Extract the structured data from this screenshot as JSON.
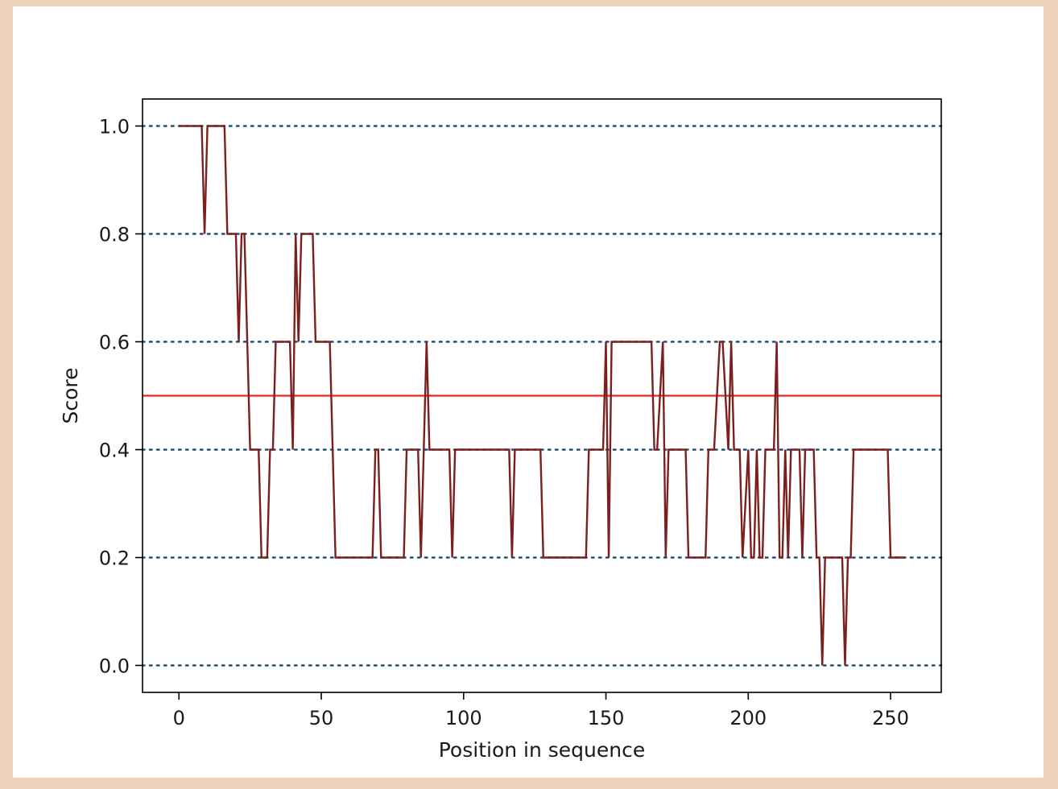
{
  "chart_data": {
    "type": "line",
    "title": "",
    "xlabel": "Position in sequence",
    "ylabel": "Score",
    "xlim": [
      -12.8,
      267.8
    ],
    "ylim": [
      -0.05,
      1.05
    ],
    "xticks": [
      0,
      50,
      100,
      150,
      200,
      250
    ],
    "yticks": [
      0.0,
      0.2,
      0.4,
      0.6,
      0.8,
      1.0
    ],
    "xtick_labels": [
      "0",
      "50",
      "100",
      "150",
      "200",
      "250"
    ],
    "ytick_labels": [
      "0.0",
      "0.2",
      "0.4",
      "0.6",
      "0.8",
      "1.0"
    ],
    "grid": "horizontal dotted at y ticks",
    "threshold": 0.5,
    "colors": {
      "series": "#7b1f1f",
      "threshold": "#e8261a",
      "grid": "#1f4e6e"
    },
    "series": [
      {
        "x": [
          0,
          8,
          9,
          10,
          11,
          16,
          17,
          19,
          20,
          21,
          22,
          23,
          24,
          25,
          26,
          28,
          29,
          30,
          31,
          32,
          33,
          34,
          35,
          39,
          40,
          41,
          42,
          43,
          44,
          47,
          48,
          49,
          50,
          53,
          54,
          55,
          56,
          68,
          69,
          70,
          71,
          72,
          73,
          79,
          80,
          81,
          82,
          84,
          85,
          86,
          87,
          88,
          89,
          95,
          96,
          97,
          98,
          116,
          117,
          118,
          119,
          127,
          128,
          143,
          144,
          149,
          150,
          151,
          152,
          153,
          166,
          167,
          168,
          170,
          171,
          172,
          173,
          178,
          179,
          185,
          186,
          187,
          188,
          190,
          191,
          193,
          194,
          195,
          196,
          197,
          198,
          200,
          201,
          202,
          203,
          204,
          205,
          206,
          207,
          209,
          210,
          211,
          212,
          213,
          214,
          215,
          216,
          218,
          219,
          220,
          221,
          223,
          224,
          225,
          226,
          227,
          228,
          233,
          234,
          235,
          236,
          237,
          238,
          249,
          250,
          255
        ],
        "y": [
          1.0,
          1.0,
          0.8,
          1.0,
          1.0,
          1.0,
          0.8,
          0.8,
          0.8,
          0.6,
          0.8,
          0.8,
          0.6,
          0.4,
          0.4,
          0.4,
          0.2,
          0.2,
          0.2,
          0.4,
          0.4,
          0.6,
          0.6,
          0.6,
          0.4,
          0.8,
          0.6,
          0.8,
          0.8,
          0.8,
          0.6,
          0.6,
          0.6,
          0.6,
          0.4,
          0.2,
          0.2,
          0.2,
          0.4,
          0.4,
          0.2,
          0.2,
          0.2,
          0.2,
          0.4,
          0.4,
          0.4,
          0.4,
          0.2,
          0.4,
          0.6,
          0.4,
          0.4,
          0.4,
          0.2,
          0.4,
          0.4,
          0.4,
          0.2,
          0.4,
          0.4,
          0.4,
          0.2,
          0.2,
          0.4,
          0.4,
          0.6,
          0.2,
          0.6,
          0.6,
          0.6,
          0.4,
          0.4,
          0.6,
          0.2,
          0.4,
          0.4,
          0.4,
          0.2,
          0.2,
          0.4,
          0.4,
          0.4,
          0.6,
          0.6,
          0.4,
          0.6,
          0.4,
          0.4,
          0.4,
          0.2,
          0.4,
          0.2,
          0.2,
          0.4,
          0.2,
          0.2,
          0.4,
          0.4,
          0.4,
          0.6,
          0.2,
          0.2,
          0.4,
          0.2,
          0.4,
          0.4,
          0.4,
          0.2,
          0.4,
          0.4,
          0.4,
          0.2,
          0.2,
          0.0,
          0.2,
          0.2,
          0.2,
          0.0,
          0.2,
          0.2,
          0.4,
          0.4,
          0.4,
          0.2,
          0.2
        ]
      }
    ]
  }
}
